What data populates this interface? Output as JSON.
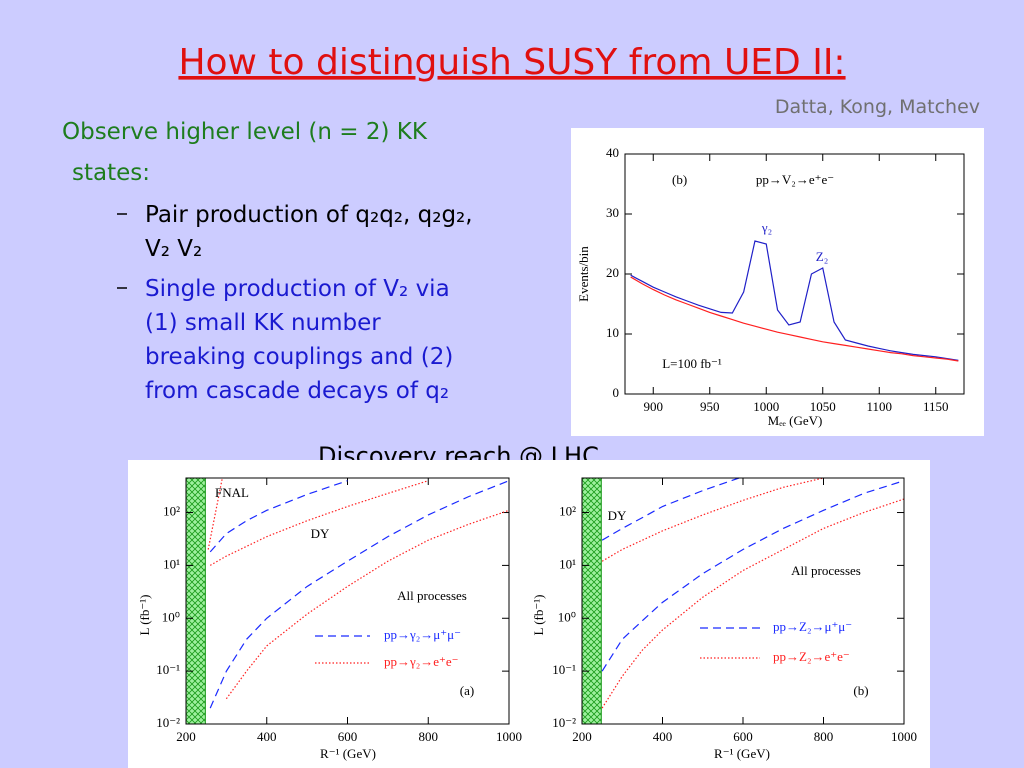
{
  "slide": {
    "title": "How to distinguish SUSY from UED II:",
    "credit": "Datta, Kong, Matchev",
    "intro": {
      "lines": [
        "Observe higher level (n = 2) KK",
        "states:"
      ],
      "color": "#1e7d1e"
    },
    "points": [
      {
        "lines": [
          "Pair production of q₂q₂, q₂g₂,",
          "V₂ V₂"
        ],
        "color": "#000000"
      },
      {
        "lines": [
          "Single production of V₂ via",
          "(1) small KK number",
          "breaking couplings and (2)",
          "from cascade decays of q₂"
        ],
        "color": "#1a1ad0"
      }
    ],
    "caption": "Discovery reach @ LHC"
  },
  "chart_data": [
    {
      "type": "line",
      "x_label": "Mₑₑ (GeV)",
      "y_label": "Events/bin",
      "xlim": [
        875,
        1175
      ],
      "ylim": [
        0,
        40
      ],
      "xticks": [
        900,
        950,
        1000,
        1050,
        1100,
        1150
      ],
      "yticks": [
        0,
        10,
        20,
        30,
        40
      ],
      "x": [
        880,
        890,
        900,
        910,
        920,
        930,
        940,
        950,
        960,
        970,
        980,
        990,
        1000,
        1010,
        1020,
        1030,
        1040,
        1050,
        1060,
        1070,
        1080,
        1090,
        1100,
        1110,
        1120,
        1130,
        1140,
        1150,
        1160,
        1170
      ],
      "series": [
        {
          "color": "#2020c8",
          "values": [
            19.8,
            18.8,
            17.8,
            17,
            16.2,
            15.5,
            14.8,
            14.2,
            13.6,
            13.5,
            17,
            25.5,
            25,
            14,
            11.5,
            12,
            20,
            21,
            12,
            9,
            8.5,
            8,
            7.6,
            7.2,
            6.9,
            6.6,
            6.4,
            6.2,
            5.9,
            5.6
          ]
        },
        {
          "color": "#ff2020",
          "values": [
            19.5,
            18.4,
            17.4,
            16.5,
            15.7,
            15,
            14.3,
            13.6,
            13,
            12.4,
            11.8,
            11.3,
            10.8,
            10.3,
            9.9,
            9.5,
            9.1,
            8.7,
            8.4,
            8.1,
            7.8,
            7.5,
            7.2,
            6.9,
            6.7,
            6.4,
            6.2,
            6,
            5.8,
            5.5
          ]
        }
      ],
      "annotations": {
        "panel": "(b)",
        "process": "pp→V₂→e⁺e⁻",
        "peak1": "γ₂",
        "peak2": "Z₂",
        "lumi": "L=100 fb⁻¹"
      }
    },
    {
      "type": "line",
      "log_y": true,
      "x_label": "R⁻¹ (GeV)",
      "y_label": "L (fb⁻¹)",
      "xlim": [
        200,
        1000
      ],
      "ylim": [
        0.01,
        450
      ],
      "xticks": [
        200,
        400,
        600,
        800,
        1000
      ],
      "yticks": [
        {
          "value": 0.01,
          "label": "10⁻²"
        },
        {
          "value": 0.1,
          "label": "10⁻¹"
        },
        {
          "value": 1,
          "label": "10⁰"
        },
        {
          "value": 10,
          "label": "10¹"
        },
        {
          "value": 100,
          "label": "10²"
        }
      ],
      "excluded_x": [
        200,
        248
      ],
      "x": [
        260,
        300,
        350,
        400,
        500,
        600,
        700,
        800,
        900,
        1000
      ],
      "series": [
        {
          "name": "pp→γ₂→μ⁺μ⁻",
          "color": "#1a2aff",
          "dash": "8 5",
          "values": [
            0.02,
            0.1,
            0.4,
            1,
            4,
            12,
            35,
            90,
            200,
            400
          ]
        },
        {
          "name": "pp→γ₂→e⁺e⁻",
          "color": "#ff2020",
          "dash": "1.5 2",
          "values": [
            null,
            0.03,
            0.1,
            0.3,
            1.2,
            4,
            12,
            30,
            60,
            110
          ]
        }
      ],
      "extra_series": [
        {
          "color": "#1a2aff",
          "dash": "8 5",
          "x": [
            260,
            300,
            350,
            400,
            500,
            600
          ],
          "values": [
            18,
            40,
            70,
            110,
            220,
            400
          ]
        },
        {
          "color": "#ff2020",
          "dash": "1.5 2",
          "x": [
            260,
            300,
            400,
            500,
            600,
            700,
            800
          ],
          "values": [
            10,
            15,
            35,
            70,
            130,
            230,
            400
          ]
        },
        {
          "color": "#ff2020",
          "dash": "1.5 2",
          "x": [
            255,
            290
          ],
          "values": [
            20,
            450
          ]
        }
      ],
      "annotations": {
        "fnal": "FNAL",
        "dy": "DY",
        "all": "All processes",
        "panel": "(a)"
      }
    },
    {
      "type": "line",
      "log_y": true,
      "x_label": "R⁻¹ (GeV)",
      "y_label": "L (fb⁻¹)",
      "xlim": [
        200,
        1000
      ],
      "ylim": [
        0.01,
        450
      ],
      "xticks": [
        200,
        400,
        600,
        800,
        1000
      ],
      "yticks": [
        {
          "value": 0.01,
          "label": "10⁻²"
        },
        {
          "value": 0.1,
          "label": "10⁻¹"
        },
        {
          "value": 1,
          "label": "10⁰"
        },
        {
          "value": 10,
          "label": "10¹"
        },
        {
          "value": 100,
          "label": "10²"
        }
      ],
      "excluded_x": [
        200,
        248
      ],
      "x": [
        250,
        300,
        350,
        400,
        500,
        600,
        700,
        800,
        900,
        1000
      ],
      "series": [
        {
          "name": "pp→Z₂→μ⁺μ⁻",
          "color": "#1a2aff",
          "dash": "8 5",
          "values": [
            0.1,
            0.4,
            0.9,
            2,
            7,
            20,
            50,
            110,
            230,
            400
          ]
        },
        {
          "name": "pp→Z₂→e⁺e⁻",
          "color": "#ff2020",
          "dash": "1.5 2",
          "values": [
            0.02,
            0.08,
            0.25,
            0.6,
            2.5,
            8,
            20,
            50,
            100,
            180
          ]
        }
      ],
      "extra_series": [
        {
          "color": "#1a2aff",
          "dash": "8 5",
          "x": [
            250,
            300,
            350,
            400,
            500,
            590
          ],
          "values": [
            30,
            50,
            80,
            130,
            260,
            450
          ]
        },
        {
          "color": "#ff2020",
          "dash": "1.5 2",
          "x": [
            250,
            300,
            400,
            500,
            600,
            700,
            800
          ],
          "values": [
            12,
            20,
            45,
            90,
            170,
            300,
            450
          ]
        }
      ],
      "annotations": {
        "dy": "DY",
        "all": "All processes",
        "panel": "(b)"
      }
    }
  ]
}
